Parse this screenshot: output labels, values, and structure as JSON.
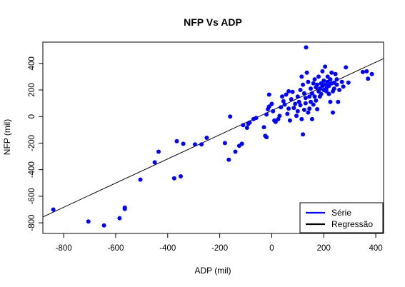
{
  "chart_data": {
    "type": "scatter",
    "title": "NFP Vs ADP",
    "xlabel": "ADP (mil)",
    "ylabel": "NFP (mil)",
    "xlim": [
      -880,
      430
    ],
    "ylim": [
      -880,
      560
    ],
    "x_ticks": [
      "-800",
      "-600",
      "-400",
      "-200",
      "0",
      "200",
      "400"
    ],
    "x_tick_values": [
      -800,
      -600,
      -400,
      -200,
      0,
      200,
      400
    ],
    "y_ticks": [
      "-800",
      "-600",
      "-400",
      "-200",
      "0",
      "200",
      "400"
    ],
    "y_tick_values": [
      -800,
      -600,
      -400,
      -200,
      0,
      200,
      400
    ],
    "grid": false,
    "legend_position": "bottom-right",
    "series": [
      {
        "name": "Série",
        "kind": "points",
        "color": "#0000ff",
        "points": [
          [
            -840,
            -700
          ],
          [
            -705,
            -790
          ],
          [
            -645,
            -820
          ],
          [
            -585,
            -765
          ],
          [
            -565,
            -685
          ],
          [
            -565,
            -695
          ],
          [
            -505,
            -475
          ],
          [
            -450,
            -345
          ],
          [
            -435,
            -265
          ],
          [
            -375,
            -465
          ],
          [
            -365,
            -185
          ],
          [
            -350,
            -450
          ],
          [
            -340,
            -205
          ],
          [
            -295,
            -210
          ],
          [
            -270,
            -210
          ],
          [
            -250,
            -160
          ],
          [
            -180,
            -200
          ],
          [
            -165,
            -325
          ],
          [
            -160,
            0
          ],
          [
            -140,
            -265
          ],
          [
            -125,
            -220
          ],
          [
            -115,
            -205
          ],
          [
            -110,
            -65
          ],
          [
            -95,
            -85
          ],
          [
            -90,
            -55
          ],
          [
            -85,
            -45
          ],
          [
            -70,
            -20
          ],
          [
            -60,
            -10
          ],
          [
            -30,
            -80
          ],
          [
            -25,
            -145
          ],
          [
            -20,
            -155
          ],
          [
            -20,
            15
          ],
          [
            -15,
            55
          ],
          [
            -10,
            75
          ],
          [
            -10,
            165
          ],
          [
            0,
            95
          ],
          [
            5,
            40
          ],
          [
            10,
            -30
          ],
          [
            15,
            -40
          ],
          [
            25,
            -20
          ],
          [
            30,
            5
          ],
          [
            35,
            70
          ],
          [
            40,
            150
          ],
          [
            45,
            115
          ],
          [
            50,
            90
          ],
          [
            55,
            165
          ],
          [
            60,
            20
          ],
          [
            65,
            190
          ],
          [
            65,
            60
          ],
          [
            70,
            -30
          ],
          [
            75,
            130
          ],
          [
            80,
            185
          ],
          [
            85,
            65
          ],
          [
            90,
            95
          ],
          [
            95,
            5
          ],
          [
            100,
            40
          ],
          [
            100,
            150
          ],
          [
            105,
            110
          ],
          [
            110,
            200
          ],
          [
            110,
            85
          ],
          [
            115,
            300
          ],
          [
            115,
            -20
          ],
          [
            120,
            -135
          ],
          [
            120,
            240
          ],
          [
            125,
            50
          ],
          [
            125,
            175
          ],
          [
            130,
            140
          ],
          [
            130,
            100
          ],
          [
            132,
            520
          ],
          [
            135,
            330
          ],
          [
            140,
            260
          ],
          [
            140,
            30
          ],
          [
            145,
            150
          ],
          [
            145,
            60
          ],
          [
            150,
            210
          ],
          [
            150,
            110
          ],
          [
            155,
            175
          ],
          [
            155,
            -20
          ],
          [
            160,
            250
          ],
          [
            160,
            90
          ],
          [
            165,
            280
          ],
          [
            165,
            150
          ],
          [
            170,
            220
          ],
          [
            170,
            120
          ],
          [
            175,
            240
          ],
          [
            175,
            55
          ],
          [
            180,
            190
          ],
          [
            180,
            300
          ],
          [
            185,
            210
          ],
          [
            185,
            150
          ],
          [
            190,
            250
          ],
          [
            190,
            170
          ],
          [
            195,
            230
          ],
          [
            195,
            340
          ],
          [
            200,
            200
          ],
          [
            200,
            270
          ],
          [
            205,
            375
          ],
          [
            205,
            240
          ],
          [
            210,
            190
          ],
          [
            210,
            210
          ],
          [
            215,
            260
          ],
          [
            215,
            300
          ],
          [
            220,
            230
          ],
          [
            220,
            170
          ],
          [
            225,
            280
          ],
          [
            225,
            110
          ],
          [
            230,
            330
          ],
          [
            230,
            250
          ],
          [
            235,
            30
          ],
          [
            235,
            190
          ],
          [
            240,
            255
          ],
          [
            240,
            210
          ],
          [
            245,
            320
          ],
          [
            250,
            280
          ],
          [
            250,
            240
          ],
          [
            255,
            110
          ],
          [
            260,
            200
          ],
          [
            270,
            260
          ],
          [
            275,
            225
          ],
          [
            285,
            370
          ],
          [
            295,
            255
          ],
          [
            350,
            335
          ],
          [
            365,
            340
          ],
          [
            370,
            285
          ],
          [
            385,
            320
          ]
        ]
      },
      {
        "name": "Regressão",
        "kind": "line",
        "color": "#000000",
        "intercept": 45,
        "slope": 0.91
      }
    ]
  }
}
